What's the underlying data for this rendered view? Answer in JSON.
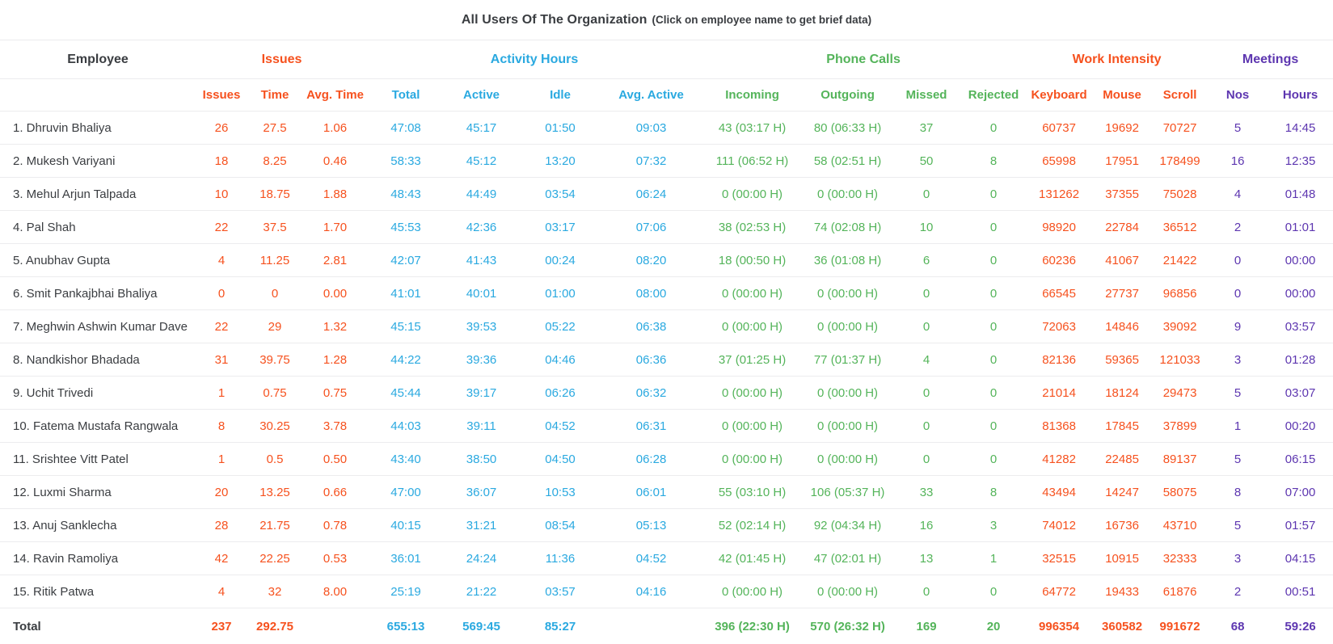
{
  "title": {
    "main": "All Users Of The Organization",
    "subtitle": "(Click on employee name to get brief data)"
  },
  "colors": {
    "orange": "#f6511e",
    "blue": "#2aa9e0",
    "green": "#54b45a",
    "purple": "#5d36b0",
    "dark": "#3a3d41",
    "border": "#ececee"
  },
  "table": {
    "groups": [
      {
        "label": "Employee",
        "color": "dark",
        "span": 1
      },
      {
        "label": "Issues",
        "color": "orange",
        "span": 3
      },
      {
        "label": "Activity Hours",
        "color": "blue",
        "span": 4
      },
      {
        "label": "Phone Calls",
        "color": "green",
        "span": 4
      },
      {
        "label": "Work Intensity",
        "color": "orange",
        "span": 3
      },
      {
        "label": "Meetings",
        "color": "purple",
        "span": 2
      }
    ],
    "columns": [
      {
        "label": "Issues",
        "color": "orange"
      },
      {
        "label": "Time",
        "color": "orange"
      },
      {
        "label": "Avg. Time",
        "color": "orange"
      },
      {
        "label": "Total",
        "color": "blue"
      },
      {
        "label": "Active",
        "color": "blue"
      },
      {
        "label": "Idle",
        "color": "blue"
      },
      {
        "label": "Avg. Active",
        "color": "blue"
      },
      {
        "label": "Incoming",
        "color": "green"
      },
      {
        "label": "Outgoing",
        "color": "green"
      },
      {
        "label": "Missed",
        "color": "green"
      },
      {
        "label": "Rejected",
        "color": "green"
      },
      {
        "label": "Keyboard",
        "color": "orange"
      },
      {
        "label": "Mouse",
        "color": "orange"
      },
      {
        "label": "Scroll",
        "color": "orange"
      },
      {
        "label": "Nos",
        "color": "purple"
      },
      {
        "label": "Hours",
        "color": "purple"
      }
    ],
    "rows": [
      {
        "name": "1. Dhruvin Bhaliya",
        "values": [
          "26",
          "27.5",
          "1.06",
          "47:08",
          "45:17",
          "01:50",
          "09:03",
          "43 (03:17 H)",
          "80 (06:33 H)",
          "37",
          "0",
          "60737",
          "19692",
          "70727",
          "5",
          "14:45"
        ]
      },
      {
        "name": "2. Mukesh Variyani",
        "values": [
          "18",
          "8.25",
          "0.46",
          "58:33",
          "45:12",
          "13:20",
          "07:32",
          "111 (06:52 H)",
          "58 (02:51 H)",
          "50",
          "8",
          "65998",
          "17951",
          "178499",
          "16",
          "12:35"
        ]
      },
      {
        "name": "3. Mehul Arjun Talpada",
        "values": [
          "10",
          "18.75",
          "1.88",
          "48:43",
          "44:49",
          "03:54",
          "06:24",
          "0 (00:00 H)",
          "0 (00:00 H)",
          "0",
          "0",
          "131262",
          "37355",
          "75028",
          "4",
          "01:48"
        ]
      },
      {
        "name": "4. Pal Shah",
        "values": [
          "22",
          "37.5",
          "1.70",
          "45:53",
          "42:36",
          "03:17",
          "07:06",
          "38 (02:53 H)",
          "74 (02:08 H)",
          "10",
          "0",
          "98920",
          "22784",
          "36512",
          "2",
          "01:01"
        ]
      },
      {
        "name": "5. Anubhav Gupta",
        "values": [
          "4",
          "11.25",
          "2.81",
          "42:07",
          "41:43",
          "00:24",
          "08:20",
          "18 (00:50 H)",
          "36 (01:08 H)",
          "6",
          "0",
          "60236",
          "41067",
          "21422",
          "0",
          "00:00"
        ]
      },
      {
        "name": "6. Smit Pankajbhai Bhaliya",
        "values": [
          "0",
          "0",
          "0.00",
          "41:01",
          "40:01",
          "01:00",
          "08:00",
          "0 (00:00 H)",
          "0 (00:00 H)",
          "0",
          "0",
          "66545",
          "27737",
          "96856",
          "0",
          "00:00"
        ]
      },
      {
        "name": "7. Meghwin Ashwin Kumar Dave",
        "values": [
          "22",
          "29",
          "1.32",
          "45:15",
          "39:53",
          "05:22",
          "06:38",
          "0 (00:00 H)",
          "0 (00:00 H)",
          "0",
          "0",
          "72063",
          "14846",
          "39092",
          "9",
          "03:57"
        ]
      },
      {
        "name": "8. Nandkishor Bhadada",
        "values": [
          "31",
          "39.75",
          "1.28",
          "44:22",
          "39:36",
          "04:46",
          "06:36",
          "37 (01:25 H)",
          "77 (01:37 H)",
          "4",
          "0",
          "82136",
          "59365",
          "121033",
          "3",
          "01:28"
        ]
      },
      {
        "name": "9. Uchit Trivedi",
        "values": [
          "1",
          "0.75",
          "0.75",
          "45:44",
          "39:17",
          "06:26",
          "06:32",
          "0 (00:00 H)",
          "0 (00:00 H)",
          "0",
          "0",
          "21014",
          "18124",
          "29473",
          "5",
          "03:07"
        ]
      },
      {
        "name": "10. Fatema Mustafa Rangwala",
        "values": [
          "8",
          "30.25",
          "3.78",
          "44:03",
          "39:11",
          "04:52",
          "06:31",
          "0 (00:00 H)",
          "0 (00:00 H)",
          "0",
          "0",
          "81368",
          "17845",
          "37899",
          "1",
          "00:20"
        ]
      },
      {
        "name": "11. Srishtee Vitt Patel",
        "values": [
          "1",
          "0.5",
          "0.50",
          "43:40",
          "38:50",
          "04:50",
          "06:28",
          "0 (00:00 H)",
          "0 (00:00 H)",
          "0",
          "0",
          "41282",
          "22485",
          "89137",
          "5",
          "06:15"
        ]
      },
      {
        "name": "12. Luxmi Sharma",
        "values": [
          "20",
          "13.25",
          "0.66",
          "47:00",
          "36:07",
          "10:53",
          "06:01",
          "55 (03:10 H)",
          "106 (05:37 H)",
          "33",
          "8",
          "43494",
          "14247",
          "58075",
          "8",
          "07:00"
        ]
      },
      {
        "name": "13. Anuj Sanklecha",
        "values": [
          "28",
          "21.75",
          "0.78",
          "40:15",
          "31:21",
          "08:54",
          "05:13",
          "52 (02:14 H)",
          "92 (04:34 H)",
          "16",
          "3",
          "74012",
          "16736",
          "43710",
          "5",
          "01:57"
        ]
      },
      {
        "name": "14. Ravin Ramoliya",
        "values": [
          "42",
          "22.25",
          "0.53",
          "36:01",
          "24:24",
          "11:36",
          "04:52",
          "42 (01:45 H)",
          "47 (02:01 H)",
          "13",
          "1",
          "32515",
          "10915",
          "32333",
          "3",
          "04:15"
        ]
      },
      {
        "name": "15. Ritik Patwa",
        "values": [
          "4",
          "32",
          "8.00",
          "25:19",
          "21:22",
          "03:57",
          "04:16",
          "0 (00:00 H)",
          "0 (00:00 H)",
          "0",
          "0",
          "64772",
          "19433",
          "61876",
          "2",
          "00:51"
        ]
      }
    ],
    "total": {
      "label": "Total",
      "values": [
        "237",
        "292.75",
        "",
        "655:13",
        "569:45",
        "85:27",
        "",
        "396 (22:30 H)",
        "570 (26:32 H)",
        "169",
        "20",
        "996354",
        "360582",
        "991672",
        "68",
        "59:26"
      ]
    }
  }
}
